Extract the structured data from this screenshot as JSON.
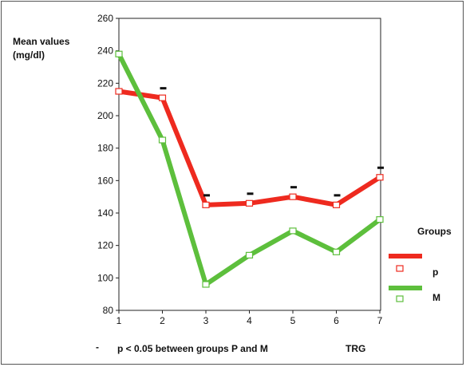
{
  "chart_data": {
    "type": "line",
    "ylabel_line1": "Mean values",
    "ylabel_line2": "(mg/dl)",
    "xlabel": "TRG",
    "categories": [
      "1",
      "2",
      "3",
      "4",
      "5",
      "6",
      "7"
    ],
    "ylim": [
      80,
      260
    ],
    "yticks": [
      80,
      100,
      120,
      140,
      160,
      180,
      200,
      220,
      240,
      260
    ],
    "legend_title": "Groups",
    "legend_placement": "right",
    "series": [
      {
        "name": "P",
        "legend_label": "p",
        "color": "#ee2a1f",
        "values": [
          215,
          211,
          145,
          146,
          150,
          145,
          162
        ]
      },
      {
        "name": "M",
        "legend_label": "M",
        "color": "#5dbf3c",
        "values": [
          238,
          185,
          96,
          114,
          129,
          116,
          136
        ]
      }
    ],
    "significance_marker": "-",
    "significant_x": [
      2,
      3,
      4,
      5,
      6,
      7
    ],
    "footnote_symbol": "-",
    "footnote": "p < 0.05 between groups P and M"
  }
}
